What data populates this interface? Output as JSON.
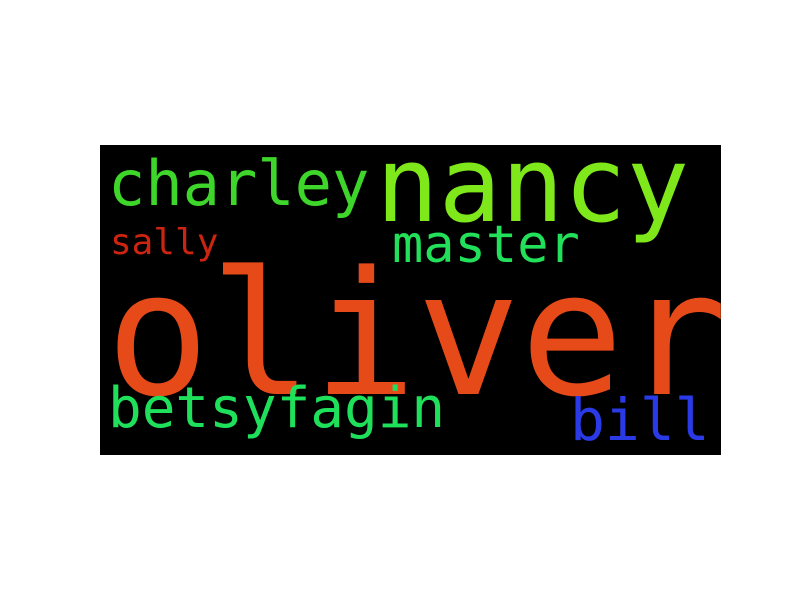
{
  "word_cloud": {
    "background": "#000000",
    "words": [
      {
        "text": "oliver",
        "color": "#e64a19"
      },
      {
        "text": "nancy",
        "color": "#7ee81a"
      },
      {
        "text": "charley",
        "color": "#3ed62a"
      },
      {
        "text": "master",
        "color": "#22e05a"
      },
      {
        "text": "sally",
        "color": "#cc2410"
      },
      {
        "text": "betsyfagin",
        "color": "#1fe05a"
      },
      {
        "text": "bill",
        "color": "#2a3ae6"
      }
    ]
  }
}
